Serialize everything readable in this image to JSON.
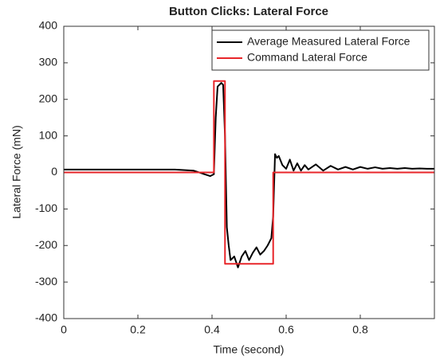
{
  "chart_data": {
    "type": "line",
    "title": "Button Clicks: Lateral Force",
    "xlabel": "Time (second)",
    "ylabel": "Lateral Force (mN)",
    "xlim": [
      0,
      1
    ],
    "ylim": [
      -400,
      400
    ],
    "xticks": [
      0,
      0.2,
      0.4,
      0.6,
      0.8
    ],
    "yticks": [
      -400,
      -300,
      -200,
      -100,
      0,
      100,
      200,
      300,
      400
    ],
    "legend": "upper right",
    "series": [
      {
        "name": "Average Measured Lateral Force",
        "color": "#000000",
        "x": [
          0,
          0.05,
          0.1,
          0.15,
          0.2,
          0.25,
          0.3,
          0.35,
          0.38,
          0.395,
          0.405,
          0.41,
          0.415,
          0.425,
          0.43,
          0.435,
          0.44,
          0.445,
          0.45,
          0.46,
          0.47,
          0.48,
          0.49,
          0.5,
          0.51,
          0.52,
          0.53,
          0.54,
          0.55,
          0.56,
          0.565,
          0.57,
          0.575,
          0.58,
          0.59,
          0.6,
          0.61,
          0.62,
          0.63,
          0.64,
          0.65,
          0.66,
          0.68,
          0.7,
          0.72,
          0.74,
          0.76,
          0.78,
          0.8,
          0.82,
          0.84,
          0.86,
          0.88,
          0.9,
          0.92,
          0.94,
          0.96,
          0.98,
          1
        ],
        "values": [
          8,
          8,
          8,
          8,
          8,
          8,
          8,
          5,
          -5,
          -10,
          -5,
          150,
          235,
          245,
          240,
          100,
          -150,
          -200,
          -240,
          -230,
          -260,
          -230,
          -215,
          -240,
          -220,
          -205,
          -225,
          -215,
          -200,
          -180,
          -120,
          50,
          40,
          45,
          20,
          10,
          35,
          5,
          25,
          5,
          20,
          8,
          22,
          5,
          18,
          8,
          15,
          8,
          15,
          10,
          14,
          10,
          12,
          10,
          12,
          10,
          11,
          10,
          10
        ]
      },
      {
        "name": "Command Lateral Force",
        "color": "#e8262a",
        "x": [
          0,
          0.405,
          0.405,
          0.435,
          0.435,
          0.565,
          0.565,
          1
        ],
        "values": [
          0,
          0,
          250,
          250,
          -250,
          -250,
          0,
          0
        ]
      }
    ]
  }
}
